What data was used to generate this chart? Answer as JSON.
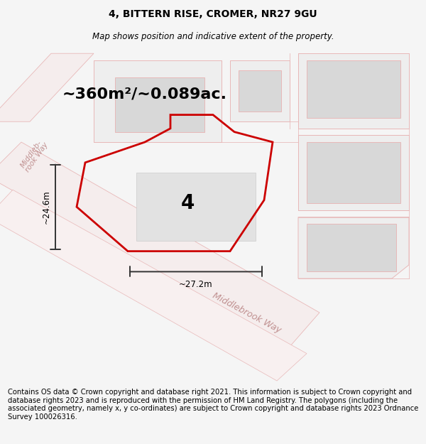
{
  "title": "4, BITTERN RISE, CROMER, NR27 9GU",
  "subtitle": "Map shows position and indicative extent of the property.",
  "area_label": "~360m²/~0.089ac.",
  "plot_number": "4",
  "width_label": "~27.2m",
  "height_label": "~24.6m",
  "footer_text": "Contains OS data © Crown copyright and database right 2021. This information is subject to Crown copyright and database rights 2023 and is reproduced with the permission of HM Land Registry. The polygons (including the associated geometry, namely x, y co-ordinates) are subject to Crown copyright and database rights 2023 Ordnance Survey 100026316.",
  "bg_color": "#f5f5f5",
  "map_bg": "#ffffff",
  "building_color": "#d8d8d8",
  "road_fill_color": "#f5eded",
  "road_line_color": "#e8b8b8",
  "red_outline": "#cc0000",
  "dim_line_color": "#333333",
  "road_label_color": "#c09090",
  "title_fontsize": 10,
  "subtitle_fontsize": 8.5,
  "footer_fontsize": 7.2,
  "area_fontsize": 16,
  "plot_num_fontsize": 20
}
